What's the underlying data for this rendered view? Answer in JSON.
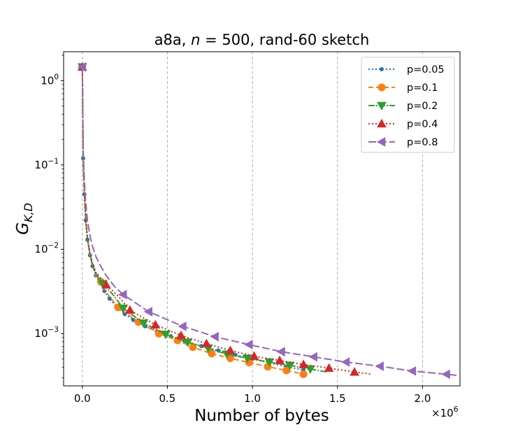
{
  "chart_data": {
    "type": "line",
    "title": "a8a, n = 500, rand-60 sketch",
    "title_parts": {
      "prefix": "a8a, ",
      "var": "n",
      "suffix": " = 500, rand-60 sketch"
    },
    "xlabel": "Number of bytes",
    "ylabel": "G_{K,D}",
    "ylabel_parts": {
      "main": "G",
      "sub": "K,D"
    },
    "x_scale_label": "×10",
    "x_scale_exp": "6",
    "xlim": [
      -0.11,
      2.22
    ],
    "ylim": [
      0.00024,
      2.2
    ],
    "yscale": "log",
    "grid": "vertical-dashed",
    "legend_position": "top-right",
    "x_ticks": [
      0.0,
      0.5,
      1.0,
      1.5,
      2.0
    ],
    "x_tick_labels": [
      "0.0",
      "0.5",
      "1.0",
      "1.5",
      "2.0"
    ],
    "y_ticks": [
      {
        "value": 1,
        "base": "10",
        "exp": "0"
      },
      {
        "value": 0.1,
        "base": "10",
        "exp": "−1"
      },
      {
        "value": 0.01,
        "base": "10",
        "exp": "−2"
      },
      {
        "value": 0.001,
        "base": "10",
        "exp": "−3"
      }
    ],
    "series": [
      {
        "name": "p=0.05",
        "color": "#1f77b4",
        "dash": "2,3",
        "marker": "circle",
        "marker_size": 2.5,
        "x": [
          0.0,
          0.005,
          0.012,
          0.02,
          0.03,
          0.045,
          0.06,
          0.08,
          0.1,
          0.13,
          0.16,
          0.2,
          0.25,
          0.3,
          0.37,
          0.44,
          0.52,
          0.6,
          0.7,
          0.8,
          0.9,
          1.0,
          1.1,
          1.2,
          1.3
        ],
        "y": [
          1.45,
          0.12,
          0.045,
          0.022,
          0.013,
          0.0085,
          0.0063,
          0.0049,
          0.0041,
          0.0032,
          0.0026,
          0.0021,
          0.0017,
          0.00145,
          0.00122,
          0.00106,
          0.00093,
          0.00082,
          0.00071,
          0.00063,
          0.00056,
          0.0005,
          0.00045,
          0.000405,
          0.00037
        ],
        "marker_every": 1
      },
      {
        "name": "p=0.1",
        "color": "#ff7f0e",
        "dash": "7,4",
        "marker": "circle",
        "marker_size": 5,
        "x": [
          0.0,
          0.005,
          0.012,
          0.02,
          0.03,
          0.045,
          0.06,
          0.08,
          0.11,
          0.15,
          0.21,
          0.33,
          0.45,
          0.56,
          0.65,
          0.76,
          0.87,
          0.98,
          1.09,
          1.2,
          1.3
        ],
        "y": [
          1.45,
          0.12,
          0.045,
          0.022,
          0.013,
          0.0085,
          0.0063,
          0.0049,
          0.0041,
          0.0029,
          0.00205,
          0.00137,
          0.001,
          0.00083,
          0.00069,
          0.00058,
          0.00051,
          0.000455,
          0.000405,
          0.000365,
          0.00033
        ],
        "marker_indices": [
          0,
          8,
          10,
          11,
          12,
          13,
          14,
          15,
          16,
          17,
          18,
          19,
          20
        ]
      },
      {
        "name": "p=0.2",
        "color": "#2ca02c",
        "dash": "9,2,2,2",
        "marker": "triangle-down",
        "marker_size": 6,
        "x": [
          0.0,
          0.005,
          0.012,
          0.02,
          0.03,
          0.045,
          0.06,
          0.08,
          0.12,
          0.18,
          0.24,
          0.36,
          0.49,
          0.62,
          0.74,
          0.85,
          0.97,
          1.1,
          1.22,
          1.34,
          1.44
        ],
        "y": [
          1.45,
          0.12,
          0.046,
          0.023,
          0.0135,
          0.0088,
          0.0066,
          0.0051,
          0.0039,
          0.0029,
          0.002,
          0.00133,
          0.00098,
          0.00079,
          0.00067,
          0.00057,
          0.00051,
          0.00046,
          0.00042,
          0.00038,
          0.00035
        ],
        "marker_indices": [
          0,
          8,
          10,
          11,
          12,
          13,
          14,
          15,
          16,
          17,
          18,
          19
        ]
      },
      {
        "name": "p=0.4",
        "color": "#d62728",
        "dash": "2,3",
        "marker": "triangle-up",
        "marker_size": 6,
        "x": [
          0.0,
          0.005,
          0.012,
          0.02,
          0.03,
          0.045,
          0.06,
          0.08,
          0.14,
          0.21,
          0.28,
          0.43,
          0.58,
          0.73,
          0.87,
          1.01,
          1.16,
          1.3,
          1.45,
          1.6,
          1.7
        ],
        "y": [
          1.45,
          0.12,
          0.047,
          0.023,
          0.0138,
          0.009,
          0.0068,
          0.0053,
          0.0038,
          0.0028,
          0.0019,
          0.00127,
          0.00095,
          0.00076,
          0.00063,
          0.00054,
          0.00048,
          0.00043,
          0.00039,
          0.00035,
          0.00033
        ],
        "marker_indices": [
          0,
          8,
          10,
          11,
          12,
          13,
          14,
          15,
          16,
          17,
          18,
          19
        ]
      },
      {
        "name": "p=0.8",
        "color": "#9467bd",
        "dash": "11,4",
        "marker": "triangle-left",
        "marker_size": 6,
        "x": [
          0.0,
          0.005,
          0.012,
          0.02,
          0.03,
          0.045,
          0.06,
          0.08,
          0.11,
          0.14,
          0.19,
          0.24,
          0.39,
          0.59,
          0.78,
          0.98,
          1.17,
          1.36,
          1.55,
          1.75,
          1.94,
          2.14,
          2.2
        ],
        "y": [
          1.45,
          0.15,
          0.065,
          0.036,
          0.022,
          0.0145,
          0.0108,
          0.0082,
          0.0062,
          0.0049,
          0.0036,
          0.0029,
          0.00182,
          0.00122,
          0.00092,
          0.00074,
          0.00061,
          0.00053,
          0.00046,
          0.00041,
          0.00036,
          0.00033,
          0.00032
        ],
        "marker_indices": [
          0,
          11,
          12,
          13,
          14,
          15,
          16,
          17,
          18,
          19,
          20,
          21
        ]
      }
    ]
  }
}
